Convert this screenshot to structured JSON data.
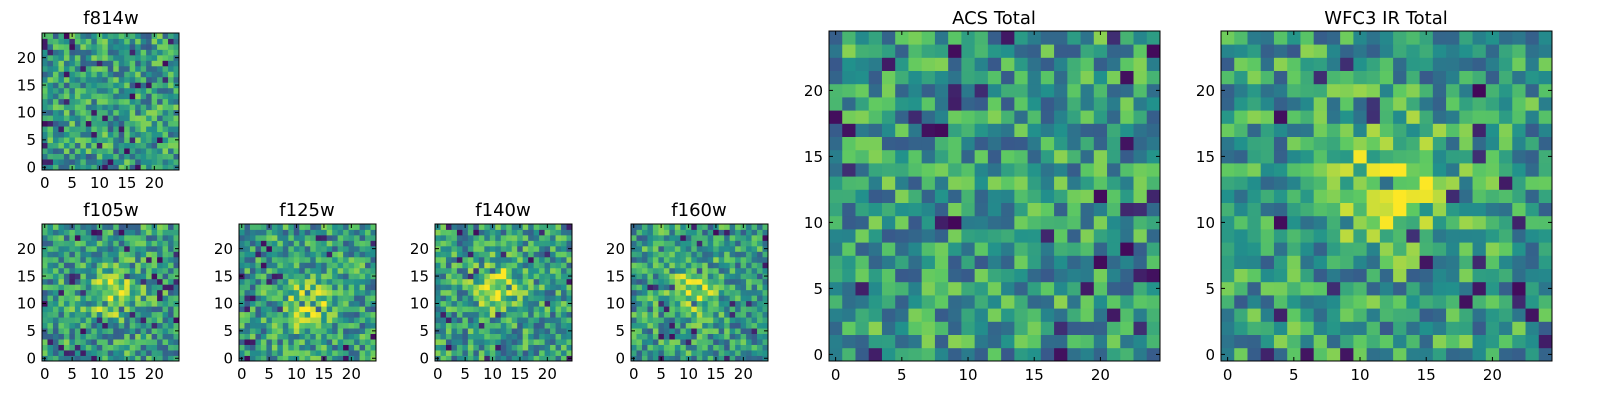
{
  "figure": {
    "description_colormap": "viridis"
  },
  "colormap": [
    "#440154",
    "#3b528b",
    "#21918c",
    "#5ec962",
    "#fde725"
  ],
  "chart_data": [
    {
      "id": "f814w",
      "type": "heatmap",
      "title": "f814w",
      "grid_size": [
        25,
        25
      ],
      "xlim": [
        0,
        24
      ],
      "ylim": [
        0,
        24
      ],
      "xticks": [
        "0",
        "5",
        "10",
        "15",
        "20"
      ],
      "yticks": [
        "0",
        "5",
        "10",
        "15",
        "20"
      ],
      "value_range": [
        0,
        1
      ],
      "pattern": "noise",
      "seed": 11
    },
    {
      "id": "f105w",
      "type": "heatmap",
      "title": "f105w",
      "grid_size": [
        25,
        25
      ],
      "xlim": [
        0,
        24
      ],
      "ylim": [
        0,
        24
      ],
      "xticks": [
        "0",
        "5",
        "10",
        "15",
        "20"
      ],
      "yticks": [
        "0",
        "5",
        "10",
        "15",
        "20"
      ],
      "value_range": [
        0,
        1
      ],
      "pattern": "centered-source",
      "source_center": [
        12,
        12
      ],
      "seed": 23
    },
    {
      "id": "f125w",
      "type": "heatmap",
      "title": "f125w",
      "grid_size": [
        25,
        25
      ],
      "xlim": [
        0,
        24
      ],
      "ylim": [
        0,
        24
      ],
      "xticks": [
        "0",
        "5",
        "10",
        "15",
        "20"
      ],
      "yticks": [
        "0",
        "5",
        "10",
        "15",
        "20"
      ],
      "value_range": [
        0,
        1
      ],
      "pattern": "centered-source",
      "source_center": [
        12,
        10
      ],
      "seed": 37
    },
    {
      "id": "f140w",
      "type": "heatmap",
      "title": "f140w",
      "grid_size": [
        25,
        25
      ],
      "xlim": [
        0,
        24
      ],
      "ylim": [
        0,
        24
      ],
      "xticks": [
        "0",
        "5",
        "10",
        "15",
        "20"
      ],
      "yticks": [
        "0",
        "5",
        "10",
        "15",
        "20"
      ],
      "value_range": [
        0,
        1
      ],
      "pattern": "centered-source",
      "source_center": [
        11,
        13
      ],
      "seed": 41
    },
    {
      "id": "f160w",
      "type": "heatmap",
      "title": "f160w",
      "grid_size": [
        25,
        25
      ],
      "xlim": [
        0,
        24
      ],
      "ylim": [
        0,
        24
      ],
      "xticks": [
        "0",
        "5",
        "10",
        "15",
        "20"
      ],
      "yticks": [
        "0",
        "5",
        "10",
        "15",
        "20"
      ],
      "value_range": [
        0,
        1
      ],
      "pattern": "centered-source",
      "source_center": [
        11,
        12
      ],
      "seed": 53
    },
    {
      "id": "acs-total",
      "type": "heatmap",
      "title": "ACS Total",
      "grid_size": [
        25,
        25
      ],
      "xlim": [
        0,
        24
      ],
      "ylim": [
        0,
        24
      ],
      "xticks": [
        "0",
        "5",
        "10",
        "15",
        "20"
      ],
      "yticks": [
        "0",
        "5",
        "10",
        "15",
        "20"
      ],
      "value_range": [
        0,
        1
      ],
      "pattern": "noise",
      "seed": 67
    },
    {
      "id": "wfc3-ir-total",
      "type": "heatmap",
      "title": "WFC3 IR Total",
      "grid_size": [
        25,
        25
      ],
      "xlim": [
        0,
        24
      ],
      "ylim": [
        0,
        24
      ],
      "xticks": [
        "0",
        "5",
        "10",
        "15",
        "20"
      ],
      "yticks": [
        "0",
        "5",
        "10",
        "15",
        "20"
      ],
      "value_range": [
        0,
        1
      ],
      "pattern": "centered-source",
      "source_center": [
        12,
        13
      ],
      "seed": 79
    }
  ]
}
